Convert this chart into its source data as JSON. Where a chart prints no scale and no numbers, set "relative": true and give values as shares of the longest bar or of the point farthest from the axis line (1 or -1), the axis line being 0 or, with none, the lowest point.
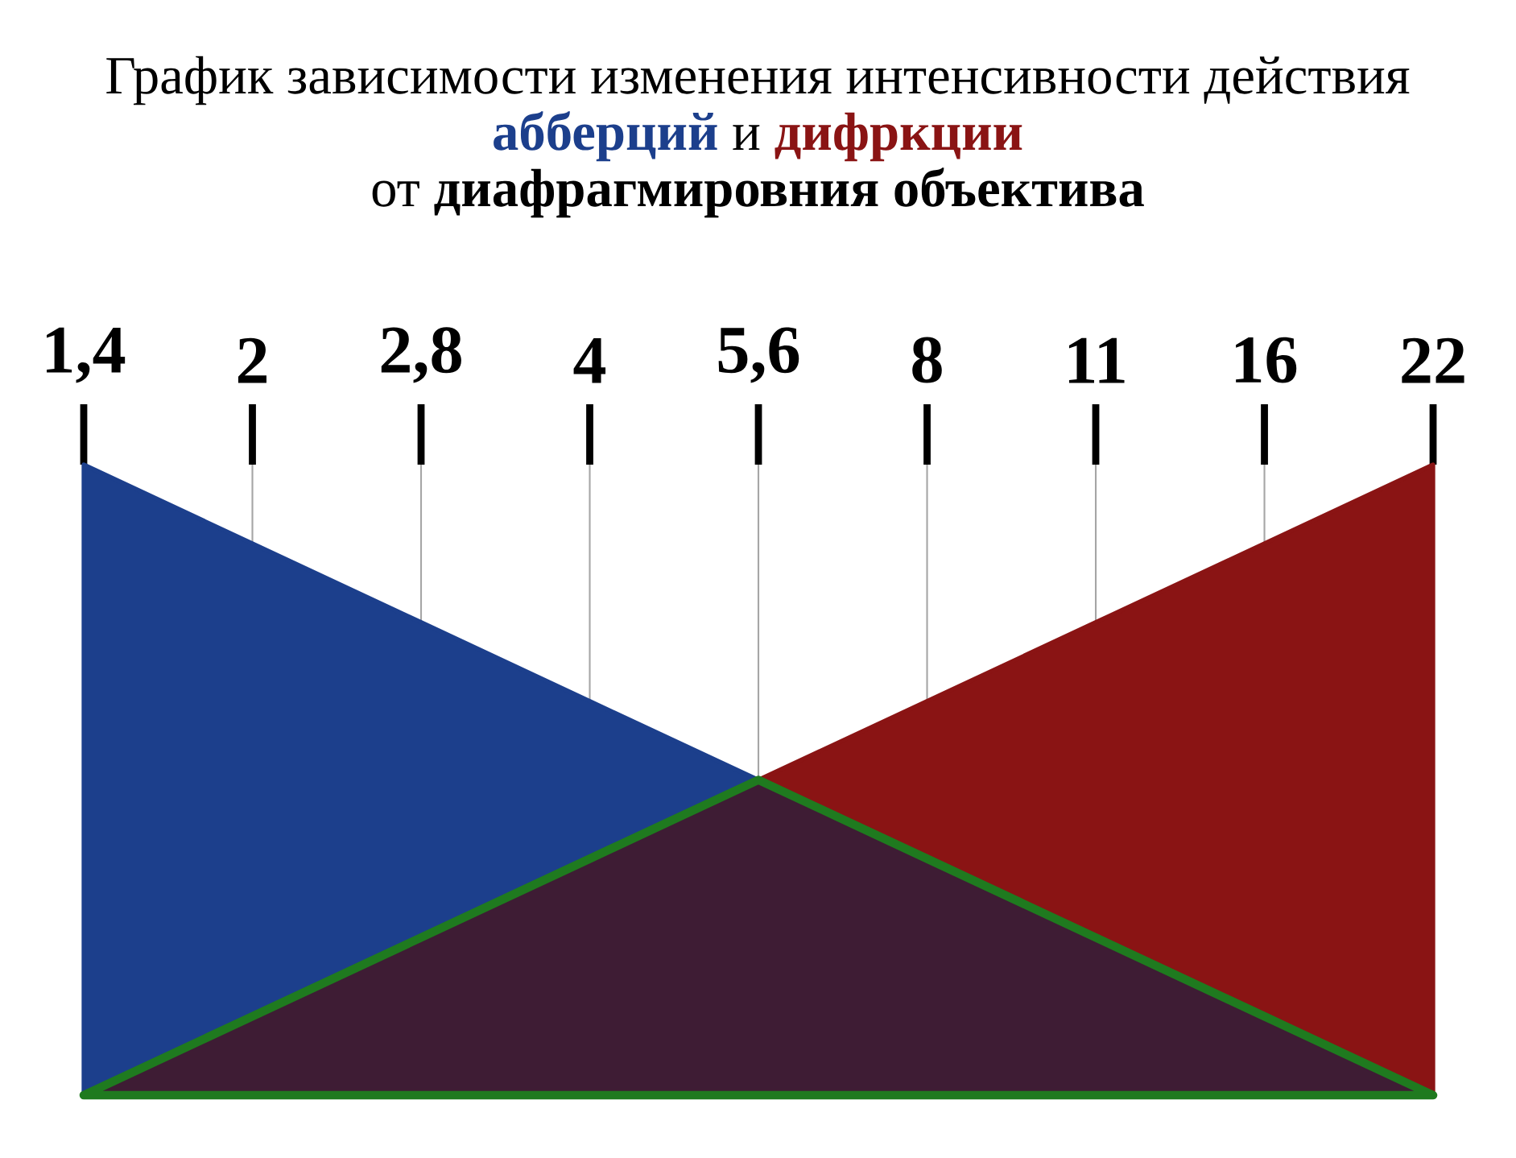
{
  "chart_data": {
    "type": "area",
    "title": "График зависимости изменения интенсивности действия",
    "subtitle": "от **диафрагмировния объектива**",
    "annotations": [
      "и"
    ],
    "relative": true,
    "grid": "x",
    "categories": [
      "1,4",
      "2",
      "2,8",
      "4",
      "5,6",
      "8",
      "11",
      "16",
      "22"
    ],
    "series": [
      {
        "name": "абберций",
        "color": "#1c3f8c",
        "values": [
          1,
          0.875,
          0.75,
          0.625,
          0.5,
          null,
          null,
          null,
          null
        ]
      },
      {
        "name": "дифркции",
        "color": "#8a1414",
        "values": [
          null,
          null,
          null,
          null,
          0.5,
          0.625,
          0.75,
          0.875,
          1
        ]
      },
      {
        "color": "#1f7a1f",
        "values": [
          0,
          0.125,
          0.25,
          0.375,
          0.5,
          0.375,
          0.25,
          0.125,
          0
        ]
      }
    ]
  }
}
